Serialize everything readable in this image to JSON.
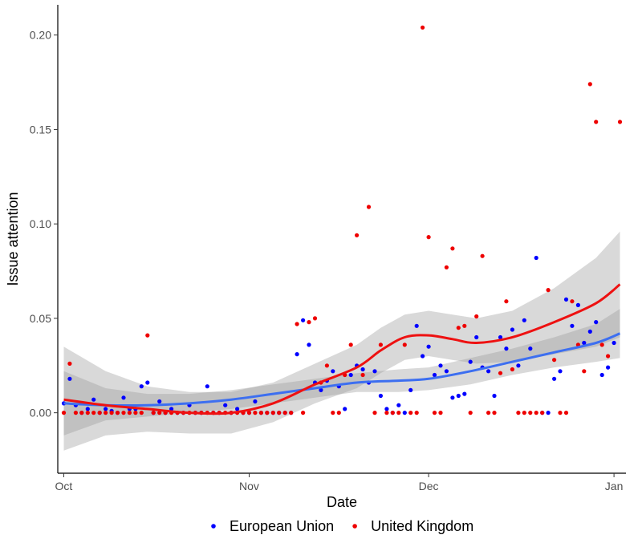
{
  "chart_data": {
    "type": "scatter",
    "title": "",
    "xlabel": "Date",
    "ylabel": "Issue attention",
    "xlim": [
      "2019-09-30",
      "2020-01-03"
    ],
    "ylim": [
      -0.032,
      0.216
    ],
    "x_ticks": [
      {
        "date": "2019-10-01",
        "label": "Oct"
      },
      {
        "date": "2019-11-01",
        "label": "Nov"
      },
      {
        "date": "2019-12-01",
        "label": "Dec"
      },
      {
        "date": "2020-01-01",
        "label": "Jan"
      }
    ],
    "y_ticks": [
      {
        "value": 0.0,
        "label": "0.00"
      },
      {
        "value": 0.05,
        "label": "0.05"
      },
      {
        "value": 0.1,
        "label": "0.10"
      },
      {
        "value": 0.15,
        "label": "0.15"
      },
      {
        "value": 0.2,
        "label": "0.20"
      }
    ],
    "grid": false,
    "legend_position": "bottom",
    "series": [
      {
        "name": "European Union",
        "color": "#0000ff",
        "smooth_color": "#3d6ff0",
        "points": [
          [
            "2019-10-01",
            0.005
          ],
          [
            "2019-10-02",
            0.018
          ],
          [
            "2019-10-03",
            0.004
          ],
          [
            "2019-10-04",
            0.0
          ],
          [
            "2019-10-05",
            0.002
          ],
          [
            "2019-10-06",
            0.007
          ],
          [
            "2019-10-07",
            0.0
          ],
          [
            "2019-10-08",
            0.002
          ],
          [
            "2019-10-09",
            0.001
          ],
          [
            "2019-10-10",
            0.0
          ],
          [
            "2019-10-11",
            0.008
          ],
          [
            "2019-10-12",
            0.002
          ],
          [
            "2019-10-13",
            0.002
          ],
          [
            "2019-10-14",
            0.014
          ],
          [
            "2019-10-15",
            0.016
          ],
          [
            "2019-10-16",
            0.0
          ],
          [
            "2019-10-17",
            0.006
          ],
          [
            "2019-10-18",
            0.0
          ],
          [
            "2019-10-19",
            0.002
          ],
          [
            "2019-10-20",
            0.0
          ],
          [
            "2019-10-21",
            0.0
          ],
          [
            "2019-10-22",
            0.004
          ],
          [
            "2019-10-23",
            0.0
          ],
          [
            "2019-10-24",
            0.0
          ],
          [
            "2019-10-25",
            0.014
          ],
          [
            "2019-10-26",
            0.0
          ],
          [
            "2019-10-27",
            0.0
          ],
          [
            "2019-10-28",
            0.004
          ],
          [
            "2019-10-29",
            0.0
          ],
          [
            "2019-10-30",
            0.002
          ],
          [
            "2019-10-31",
            0.0
          ],
          [
            "2019-11-01",
            0.0
          ],
          [
            "2019-11-02",
            0.006
          ],
          [
            "2019-11-03",
            0.0
          ],
          [
            "2019-11-04",
            0.0
          ],
          [
            "2019-11-05",
            0.0
          ],
          [
            "2019-11-06",
            0.0
          ],
          [
            "2019-11-07",
            0.0
          ],
          [
            "2019-11-08",
            0.0
          ],
          [
            "2019-11-09",
            0.031
          ],
          [
            "2019-11-10",
            0.049
          ],
          [
            "2019-11-11",
            0.036
          ],
          [
            "2019-11-12",
            0.016
          ],
          [
            "2019-11-13",
            0.012
          ],
          [
            "2019-11-14",
            0.017
          ],
          [
            "2019-11-15",
            0.022
          ],
          [
            "2019-11-16",
            0.014
          ],
          [
            "2019-11-17",
            0.002
          ],
          [
            "2019-11-18",
            0.02
          ],
          [
            "2019-11-19",
            0.025
          ],
          [
            "2019-11-20",
            0.023
          ],
          [
            "2019-11-21",
            0.016
          ],
          [
            "2019-11-22",
            0.022
          ],
          [
            "2019-11-23",
            0.009
          ],
          [
            "2019-11-24",
            0.002
          ],
          [
            "2019-11-25",
            0.0
          ],
          [
            "2019-11-26",
            0.004
          ],
          [
            "2019-11-27",
            0.0
          ],
          [
            "2019-11-28",
            0.012
          ],
          [
            "2019-11-29",
            0.046
          ],
          [
            "2019-11-30",
            0.03
          ],
          [
            "2019-12-01",
            0.035
          ],
          [
            "2019-12-02",
            0.02
          ],
          [
            "2019-12-03",
            0.025
          ],
          [
            "2019-12-04",
            0.022
          ],
          [
            "2019-12-05",
            0.008
          ],
          [
            "2019-12-06",
            0.009
          ],
          [
            "2019-12-07",
            0.01
          ],
          [
            "2019-12-08",
            0.027
          ],
          [
            "2019-12-09",
            0.04
          ],
          [
            "2019-12-10",
            0.024
          ],
          [
            "2019-12-11",
            0.022
          ],
          [
            "2019-12-12",
            0.009
          ],
          [
            "2019-12-13",
            0.04
          ],
          [
            "2019-12-14",
            0.034
          ],
          [
            "2019-12-15",
            0.044
          ],
          [
            "2019-12-16",
            0.025
          ],
          [
            "2019-12-17",
            0.049
          ],
          [
            "2019-12-18",
            0.034
          ],
          [
            "2019-12-19",
            0.082
          ],
          [
            "2019-12-20",
            0.0
          ],
          [
            "2019-12-21",
            0.0
          ],
          [
            "2019-12-22",
            0.018
          ],
          [
            "2019-12-23",
            0.022
          ],
          [
            "2019-12-24",
            0.06
          ],
          [
            "2019-12-25",
            0.046
          ],
          [
            "2019-12-26",
            0.057
          ],
          [
            "2019-12-27",
            0.037
          ],
          [
            "2019-12-28",
            0.043
          ],
          [
            "2019-12-29",
            0.048
          ],
          [
            "2019-12-30",
            0.02
          ],
          [
            "2019-12-31",
            0.024
          ],
          [
            "2020-01-01",
            0.037
          ]
        ],
        "smooth": [
          [
            "2019-10-01",
            0.005
          ],
          [
            "2019-10-08",
            0.004
          ],
          [
            "2019-10-15",
            0.004
          ],
          [
            "2019-10-22",
            0.005
          ],
          [
            "2019-10-29",
            0.007
          ],
          [
            "2019-11-05",
            0.01
          ],
          [
            "2019-11-12",
            0.013
          ],
          [
            "2019-11-19",
            0.016
          ],
          [
            "2019-11-26",
            0.017
          ],
          [
            "2019-12-01",
            0.018
          ],
          [
            "2019-12-08",
            0.022
          ],
          [
            "2019-12-15",
            0.027
          ],
          [
            "2019-12-22",
            0.032
          ],
          [
            "2019-12-29",
            0.037
          ],
          [
            "2020-01-02",
            0.042
          ]
        ],
        "band": [
          [
            "2019-10-01",
            -0.012,
            0.022
          ],
          [
            "2019-10-08",
            -0.004,
            0.013
          ],
          [
            "2019-10-15",
            -0.002,
            0.01
          ],
          [
            "2019-10-22",
            0.0,
            0.01
          ],
          [
            "2019-10-29",
            0.002,
            0.012
          ],
          [
            "2019-11-05",
            0.005,
            0.015
          ],
          [
            "2019-11-12",
            0.008,
            0.018
          ],
          [
            "2019-11-19",
            0.011,
            0.021
          ],
          [
            "2019-11-26",
            0.011,
            0.023
          ],
          [
            "2019-12-01",
            0.012,
            0.024
          ],
          [
            "2019-12-08",
            0.015,
            0.029
          ],
          [
            "2019-12-15",
            0.02,
            0.034
          ],
          [
            "2019-12-22",
            0.024,
            0.04
          ],
          [
            "2019-12-29",
            0.027,
            0.047
          ],
          [
            "2020-01-02",
            0.029,
            0.055
          ]
        ]
      },
      {
        "name": "United Kingdom",
        "color": "#ee0000",
        "smooth_color": "#ee1111",
        "points": [
          [
            "2019-10-01",
            0.0
          ],
          [
            "2019-10-02",
            0.026
          ],
          [
            "2019-10-03",
            0.0
          ],
          [
            "2019-10-04",
            0.0
          ],
          [
            "2019-10-05",
            0.0
          ],
          [
            "2019-10-06",
            0.0
          ],
          [
            "2019-10-07",
            0.0
          ],
          [
            "2019-10-08",
            0.0
          ],
          [
            "2019-10-09",
            0.0
          ],
          [
            "2019-10-10",
            0.0
          ],
          [
            "2019-10-11",
            0.0
          ],
          [
            "2019-10-12",
            0.0
          ],
          [
            "2019-10-13",
            0.0
          ],
          [
            "2019-10-14",
            0.0
          ],
          [
            "2019-10-15",
            0.041
          ],
          [
            "2019-10-16",
            0.0
          ],
          [
            "2019-10-17",
            0.0
          ],
          [
            "2019-10-18",
            0.0
          ],
          [
            "2019-10-19",
            0.0
          ],
          [
            "2019-10-20",
            0.0
          ],
          [
            "2019-10-21",
            0.0
          ],
          [
            "2019-10-22",
            0.0
          ],
          [
            "2019-10-23",
            0.0
          ],
          [
            "2019-10-24",
            0.0
          ],
          [
            "2019-10-25",
            0.0
          ],
          [
            "2019-10-26",
            0.0
          ],
          [
            "2019-10-27",
            0.0
          ],
          [
            "2019-10-28",
            0.0
          ],
          [
            "2019-10-29",
            0.0
          ],
          [
            "2019-10-30",
            0.0
          ],
          [
            "2019-10-31",
            0.0
          ],
          [
            "2019-11-01",
            0.0
          ],
          [
            "2019-11-02",
            0.0
          ],
          [
            "2019-11-03",
            0.0
          ],
          [
            "2019-11-04",
            0.0
          ],
          [
            "2019-11-05",
            0.0
          ],
          [
            "2019-11-06",
            0.0
          ],
          [
            "2019-11-07",
            0.0
          ],
          [
            "2019-11-08",
            0.0
          ],
          [
            "2019-11-09",
            0.047
          ],
          [
            "2019-11-10",
            0.0
          ],
          [
            "2019-11-11",
            0.048
          ],
          [
            "2019-11-12",
            0.05
          ],
          [
            "2019-11-13",
            0.016
          ],
          [
            "2019-11-14",
            0.025
          ],
          [
            "2019-11-15",
            0.0
          ],
          [
            "2019-11-16",
            0.0
          ],
          [
            "2019-11-17",
            0.02
          ],
          [
            "2019-11-18",
            0.036
          ],
          [
            "2019-11-19",
            0.094
          ],
          [
            "2019-11-20",
            0.02
          ],
          [
            "2019-11-21",
            0.109
          ],
          [
            "2019-11-22",
            0.0
          ],
          [
            "2019-11-23",
            0.036
          ],
          [
            "2019-11-24",
            0.0
          ],
          [
            "2019-11-25",
            0.0
          ],
          [
            "2019-11-26",
            0.0
          ],
          [
            "2019-11-27",
            0.036
          ],
          [
            "2019-11-28",
            0.0
          ],
          [
            "2019-11-29",
            0.0
          ],
          [
            "2019-11-30",
            0.204
          ],
          [
            "2019-12-01",
            0.093
          ],
          [
            "2019-12-02",
            0.0
          ],
          [
            "2019-12-03",
            0.0
          ],
          [
            "2019-12-04",
            0.077
          ],
          [
            "2019-12-05",
            0.087
          ],
          [
            "2019-12-06",
            0.045
          ],
          [
            "2019-12-07",
            0.046
          ],
          [
            "2019-12-08",
            0.0
          ],
          [
            "2019-12-09",
            0.051
          ],
          [
            "2019-12-10",
            0.083
          ],
          [
            "2019-12-11",
            0.0
          ],
          [
            "2019-12-12",
            0.0
          ],
          [
            "2019-12-13",
            0.021
          ],
          [
            "2019-12-14",
            0.059
          ],
          [
            "2019-12-15",
            0.023
          ],
          [
            "2019-12-16",
            0.0
          ],
          [
            "2019-12-17",
            0.0
          ],
          [
            "2019-12-18",
            0.0
          ],
          [
            "2019-12-19",
            0.0
          ],
          [
            "2019-12-20",
            0.0
          ],
          [
            "2019-12-21",
            0.065
          ],
          [
            "2019-12-22",
            0.028
          ],
          [
            "2019-12-23",
            0.0
          ],
          [
            "2019-12-24",
            0.0
          ],
          [
            "2019-12-25",
            0.059
          ],
          [
            "2019-12-26",
            0.036
          ],
          [
            "2019-12-27",
            0.022
          ],
          [
            "2019-12-28",
            0.174
          ],
          [
            "2019-12-29",
            0.154
          ],
          [
            "2019-12-30",
            0.036
          ],
          [
            "2019-12-31",
            0.03
          ],
          [
            "2020-01-02",
            0.154
          ]
        ],
        "smooth": [
          [
            "2019-10-01",
            0.007
          ],
          [
            "2019-10-08",
            0.004
          ],
          [
            "2019-10-15",
            0.002
          ],
          [
            "2019-10-22",
            0.0
          ],
          [
            "2019-10-29",
            0.0
          ],
          [
            "2019-11-05",
            0.005
          ],
          [
            "2019-11-12",
            0.015
          ],
          [
            "2019-11-19",
            0.024
          ],
          [
            "2019-11-23",
            0.033
          ],
          [
            "2019-11-27",
            0.04
          ],
          [
            "2019-12-01",
            0.041
          ],
          [
            "2019-12-05",
            0.039
          ],
          [
            "2019-12-09",
            0.037
          ],
          [
            "2019-12-15",
            0.04
          ],
          [
            "2019-12-22",
            0.048
          ],
          [
            "2019-12-29",
            0.058
          ],
          [
            "2020-01-02",
            0.068
          ]
        ],
        "band": [
          [
            "2019-10-01",
            -0.02,
            0.035
          ],
          [
            "2019-10-08",
            -0.012,
            0.022
          ],
          [
            "2019-10-15",
            -0.01,
            0.014
          ],
          [
            "2019-10-22",
            -0.011,
            0.011
          ],
          [
            "2019-10-29",
            -0.011,
            0.011
          ],
          [
            "2019-11-05",
            -0.005,
            0.016
          ],
          [
            "2019-11-12",
            0.005,
            0.026
          ],
          [
            "2019-11-19",
            0.013,
            0.036
          ],
          [
            "2019-11-23",
            0.021,
            0.045
          ],
          [
            "2019-11-27",
            0.028,
            0.052
          ],
          [
            "2019-12-01",
            0.03,
            0.054
          ],
          [
            "2019-12-05",
            0.028,
            0.052
          ],
          [
            "2019-12-09",
            0.026,
            0.05
          ],
          [
            "2019-12-15",
            0.027,
            0.054
          ],
          [
            "2019-12-22",
            0.031,
            0.066
          ],
          [
            "2019-12-29",
            0.035,
            0.082
          ],
          [
            "2020-01-02",
            0.04,
            0.096
          ]
        ]
      }
    ]
  }
}
